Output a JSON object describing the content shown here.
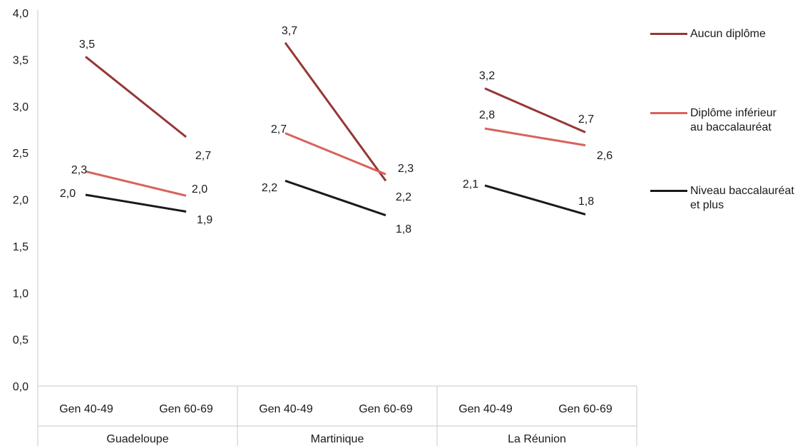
{
  "chart_data": {
    "type": "line",
    "title": "",
    "xlabel": "",
    "ylabel": "",
    "ylim": [
      0,
      4.0
    ],
    "yticks": [
      "0,0",
      "0,5",
      "1,0",
      "1,5",
      "2,0",
      "2,5",
      "3,0",
      "3,5",
      "4,0"
    ],
    "ytick_values": [
      0,
      0.5,
      1.0,
      1.5,
      2.0,
      2.5,
      3.0,
      3.5,
      4.0
    ],
    "groups": [
      "Guadeloupe",
      "Martinique",
      "La Réunion"
    ],
    "categories": [
      "Gen 40-49",
      "Gen 60-69"
    ],
    "grid": false,
    "legend_position": "right",
    "series": [
      {
        "name": "Aucun diplôme",
        "color": "#953735",
        "values": [
          [
            3.53,
            2.67
          ],
          [
            3.68,
            2.2
          ],
          [
            3.19,
            2.72
          ]
        ],
        "labels": [
          [
            "3,5",
            "2,7"
          ],
          [
            "3,7",
            "2,2"
          ],
          [
            "3,2",
            "2,7"
          ]
        ]
      },
      {
        "name": "Diplôme inférieur\nau baccalauréat",
        "color": "#d9625c",
        "values": [
          [
            2.3,
            2.04
          ],
          [
            2.71,
            2.27
          ],
          [
            2.76,
            2.58
          ]
        ],
        "labels": [
          [
            "2,3",
            "2,0"
          ],
          [
            "2,7",
            "2,3"
          ],
          [
            "2,8",
            "2,6"
          ]
        ]
      },
      {
        "name": "Niveau baccalauréat\net plus",
        "color": "#1a1a1a",
        "values": [
          [
            2.05,
            1.87
          ],
          [
            2.2,
            1.83
          ],
          [
            2.15,
            1.84
          ]
        ],
        "labels": [
          [
            "2,0",
            "1,9"
          ],
          [
            "2,2",
            "1,8"
          ],
          [
            "2,1",
            "1,8"
          ]
        ]
      }
    ]
  }
}
